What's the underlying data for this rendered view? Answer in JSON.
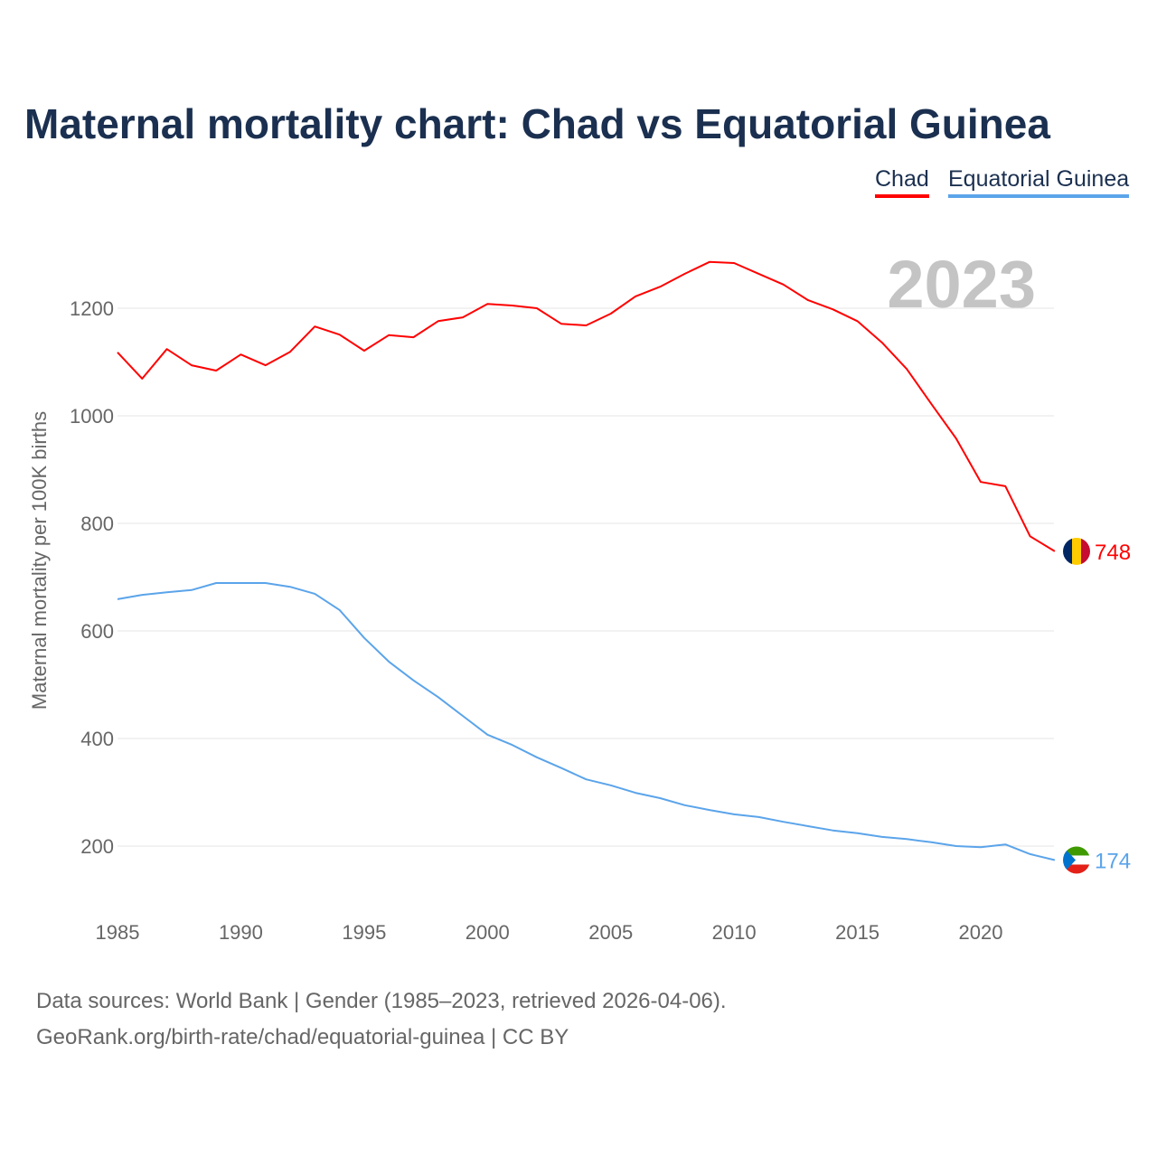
{
  "chart_data": {
    "type": "line",
    "title": "Maternal mortality chart: Chad vs Equatorial Guinea",
    "ylabel": "Maternal mortality per 100K births",
    "xlabel": "",
    "year_label": "2023",
    "xlim": [
      1985,
      2023
    ],
    "ylim": [
      95,
      1340
    ],
    "xticks": [
      "1985",
      "1990",
      "1995",
      "2000",
      "2005",
      "2010",
      "2015",
      "2020"
    ],
    "yticks": [
      "200",
      "400",
      "600",
      "800",
      "1000",
      "1200"
    ],
    "grid": true,
    "legend_placement": "top-right",
    "x": [
      1985,
      1986,
      1987,
      1988,
      1989,
      1990,
      1991,
      1992,
      1993,
      1994,
      1995,
      1996,
      1997,
      1998,
      1999,
      2000,
      2001,
      2002,
      2003,
      2004,
      2005,
      2006,
      2007,
      2008,
      2009,
      2010,
      2011,
      2012,
      2013,
      2014,
      2015,
      2016,
      2017,
      2018,
      2019,
      2020,
      2021,
      2022,
      2023
    ],
    "series": [
      {
        "name": "Chad",
        "color": "#ff0000",
        "end_label": "748",
        "values": [
          1118,
          1069,
          1124,
          1094,
          1084,
          1114,
          1094,
          1119,
          1166,
          1151,
          1121,
          1150,
          1146,
          1176,
          1183,
          1208,
          1205,
          1200,
          1171,
          1168,
          1190,
          1222,
          1240,
          1264,
          1286,
          1284,
          1264,
          1244,
          1215,
          1198,
          1176,
          1136,
          1087,
          1022,
          958,
          877,
          869,
          776,
          748
        ]
      },
      {
        "name": "Equatorial Guinea",
        "color": "#5ba4ea",
        "end_label": "174",
        "values": [
          659,
          667,
          672,
          676,
          689,
          689,
          689,
          682,
          669,
          639,
          587,
          543,
          508,
          477,
          442,
          407,
          388,
          365,
          345,
          324,
          313,
          299,
          289,
          276,
          267,
          259,
          254,
          245,
          237,
          229,
          224,
          217,
          213,
          207,
          200,
          198,
          203,
          185,
          174
        ]
      }
    ]
  },
  "footer": {
    "line1": "Data sources: World Bank | Gender (1985–2023, retrieved 2026-04-06).",
    "line2": "GeoRank.org/birth-rate/chad/equatorial-guinea | CC BY"
  }
}
